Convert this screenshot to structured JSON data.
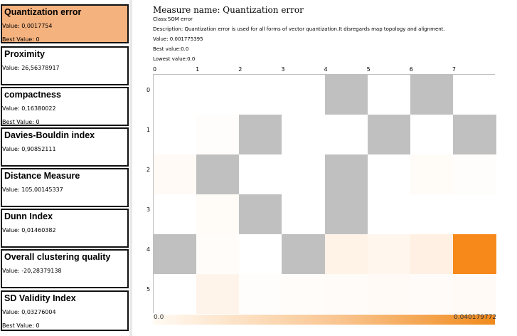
{
  "sidebar": {
    "measures": [
      {
        "title": "Quantization error",
        "value": "Value: 0,0017754",
        "best": "Best Value: 0",
        "selected": true
      },
      {
        "title": "Proximity",
        "value": "Value: 26,56378917",
        "best": ""
      },
      {
        "title": "compactness",
        "value": "Value: 0,16380022",
        "best": "Best Value: 0"
      },
      {
        "title": "Davies-Bouldin index",
        "value": "Value: 0,90852111",
        "best": ""
      },
      {
        "title": "Distance Measure",
        "value": "Value: 105,00145337",
        "best": ""
      },
      {
        "title": "Dunn Index",
        "value": "Value: 0,01460382",
        "best": ""
      },
      {
        "title": "Overall clustering quality",
        "value": "Value: -20,28379138",
        "best": ""
      },
      {
        "title": "SD Validity Index",
        "value": "Value: 0,03276004",
        "best": "Best Value: 0"
      }
    ]
  },
  "detail": {
    "title": "Measure name: Quantization error",
    "class": "Class:SOM error",
    "description": "Description: Quantization error is used for all forms of vector quantization.It disregards map topology and alignment.",
    "value": "Value: 0.001775395",
    "best": "Best value:0.0",
    "lowest": "Lowest value:0.0"
  },
  "map": {
    "columns": [
      "0",
      "1",
      "2",
      "3",
      "4",
      "5",
      "6",
      "7"
    ],
    "rows": [
      "0",
      "1",
      "2",
      "3",
      "4",
      "5"
    ],
    "cells": [
      [
        "#ffffff",
        "#ffffff",
        "#ffffff",
        "#ffffff",
        "#c0c0c0",
        "#ffffff",
        "#c0c0c0",
        "#ffffff"
      ],
      [
        "#ffffff",
        "#fffdfb",
        "#c0c0c0",
        "#ffffff",
        "#ffffff",
        "#c0c0c0",
        "#ffffff",
        "#c0c0c0"
      ],
      [
        "#fffaf5",
        "#c0c0c0",
        "#ffffff",
        "#ffffff",
        "#c0c0c0",
        "#ffffff",
        "#fffbf7",
        "#fffdfb"
      ],
      [
        "#ffffff",
        "#fffbf7",
        "#c0c0c0",
        "#ffffff",
        "#c0c0c0",
        "#ffffff",
        "#ffffff",
        "#ffffff"
      ],
      [
        "#c0c0c0",
        "#fffcf9",
        "#ffffff",
        "#c0c0c0",
        "#fff3e7",
        "#fff6ee",
        "#fff0e3",
        "#f7891a"
      ],
      [
        "#ffffff",
        "#fff4ea",
        "#fffdfb",
        "#fffcfa",
        "#fffbf8",
        "#fffaf6",
        "#fffbf8",
        "#fffaf5"
      ]
    ],
    "legend_min": "0.0",
    "legend_max": "0.040179772",
    "colors": {
      "unit_empty": "#c0c0c0",
      "high": "#f7891a",
      "selected_bg": "#f4b27f"
    }
  }
}
